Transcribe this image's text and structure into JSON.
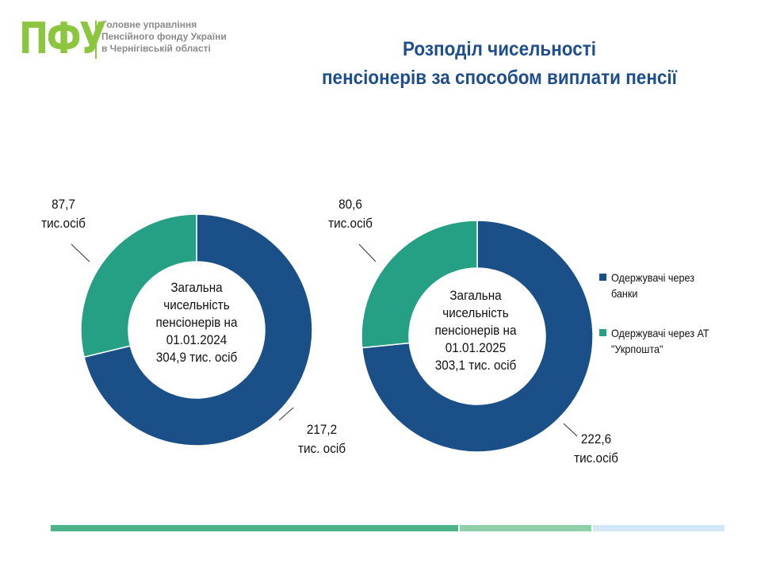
{
  "logo": {
    "mark": "ПФУ",
    "lines": [
      "Головне управління",
      "Пенсійного фонду України",
      "в Чернігівській області"
    ]
  },
  "title": {
    "line1": "Розподіл чисельності",
    "line2": "пенсіонерів за способом виплати пенсії"
  },
  "colors": {
    "banks": "#1b4f87",
    "post": "#26a085",
    "accent": "#8cc63f"
  },
  "chart_data": [
    {
      "type": "pie",
      "subtype": "donut",
      "date": "01.01.2024",
      "total_label": [
        "Загальна",
        "чисельність",
        "пенсіонерів на",
        "01.01.2024",
        "304,9 тис. осіб"
      ],
      "slices": [
        {
          "name": "Одержувачі  через банки",
          "value": 217.2,
          "label_line1": "217,2",
          "label_line2": "тис. осіб"
        },
        {
          "name": "Одержувачі  через АТ \"Укрпошта\"",
          "value": 87.7,
          "label_line1": "87,7",
          "label_line2": "тис.осіб"
        }
      ]
    },
    {
      "type": "pie",
      "subtype": "donut",
      "date": "01.01.2025",
      "total_label": [
        "Загальна",
        "чисельність",
        "пенсіонерів на",
        "01.01.2025",
        "303,1 тис. осіб"
      ],
      "slices": [
        {
          "name": "Одержувачі  через банки",
          "value": 222.6,
          "label_line1": "222,6",
          "label_line2": "тис.осіб"
        },
        {
          "name": "Одержувачі  через АТ \"Укрпошта\"",
          "value": 80.6,
          "label_line1": "80,6",
          "label_line2": "тис.осіб"
        }
      ]
    }
  ],
  "legend": [
    {
      "line1": "Одержувачі  через",
      "line2": "банки",
      "color_key": "banks"
    },
    {
      "line1": "Одержувачі  через АТ",
      "line2": "\"Укрпошта\"",
      "color_key": "post"
    }
  ]
}
